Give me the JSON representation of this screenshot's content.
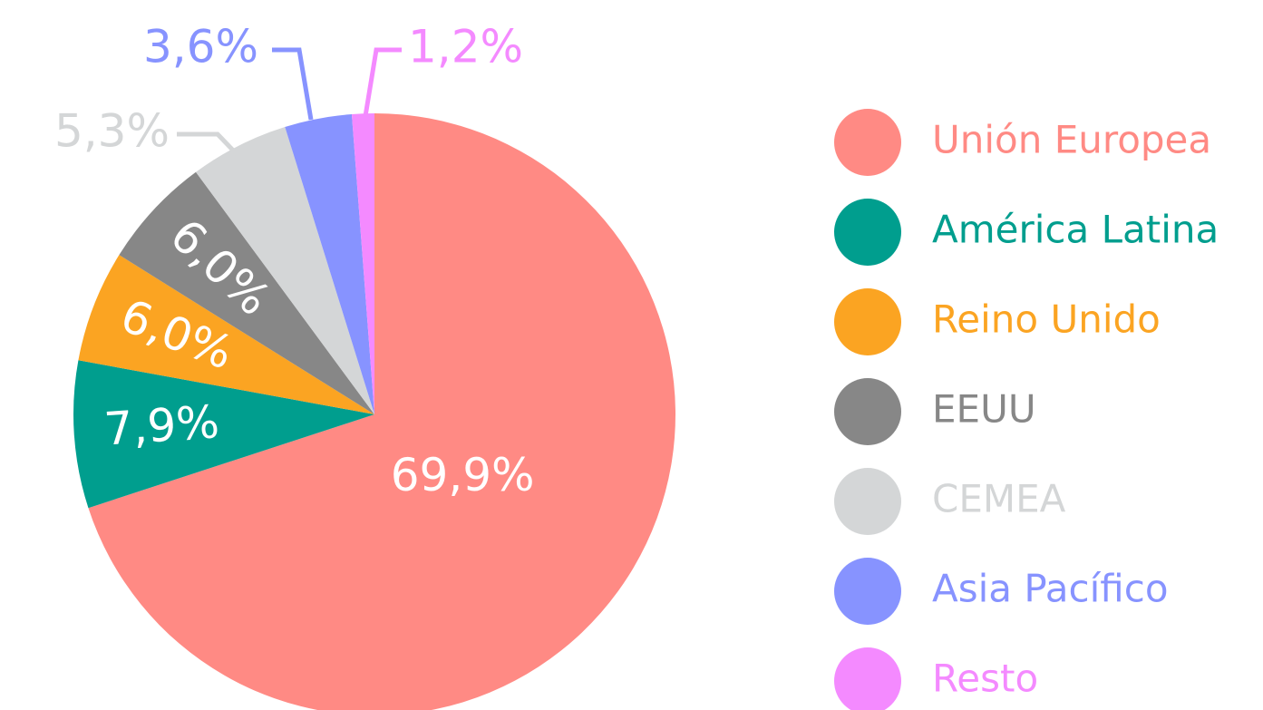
{
  "chart_data": {
    "type": "pie",
    "categories": [
      "Unión Europea",
      "América Latina",
      "Reino Unido",
      "EEUU",
      "CEMEA",
      "Asia Pacífico",
      "Resto"
    ],
    "values": [
      69.9,
      7.9,
      6.0,
      6.0,
      5.3,
      3.6,
      1.2
    ],
    "value_labels": [
      "69,9%",
      "7,9%",
      "6,0%",
      "6,0%",
      "5,3%",
      "3,6%",
      "1,2%"
    ],
    "colors": [
      "#ff8a84",
      "#009e8e",
      "#fba422",
      "#878787",
      "#d4d6d7",
      "#8793ff",
      "#f48aff"
    ],
    "legend": "right"
  }
}
